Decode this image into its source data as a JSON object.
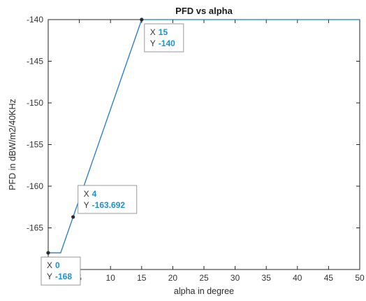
{
  "chart_data": {
    "type": "line",
    "title": "PFD vs alpha",
    "xlabel": "alpha in degree",
    "ylabel": "PFD in dBW/m2/40KHz",
    "xlim": [
      0,
      50
    ],
    "ylim": [
      -170,
      -140
    ],
    "xticks": [
      0,
      5,
      10,
      15,
      20,
      25,
      30,
      35,
      40,
      45,
      50
    ],
    "yticks": [
      -140,
      -145,
      -150,
      -155,
      -160,
      -165
    ],
    "grid": false,
    "series": [
      {
        "x": [
          0,
          2,
          15,
          50
        ],
        "y": [
          -168,
          -168,
          -140,
          -140
        ],
        "color": "#1f77d0"
      }
    ],
    "datatips": [
      {
        "x_key": "X",
        "x_value": "0",
        "y_key": "Y",
        "y_value": "-168",
        "x": 0,
        "y": -168
      },
      {
        "x_key": "X",
        "x_value": "4",
        "y_key": "Y",
        "y_value": "-163.692",
        "x": 4,
        "y": -163.692
      },
      {
        "x_key": "X",
        "x_value": "15",
        "y_key": "Y",
        "y_value": "-140",
        "x": 15,
        "y": -140
      }
    ]
  }
}
